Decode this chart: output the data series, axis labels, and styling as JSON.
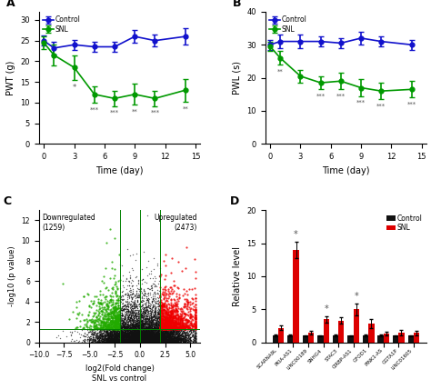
{
  "panel_A": {
    "title": "A",
    "xlabel": "Time (day)",
    "ylabel": "PWT (g)",
    "x": [
      0,
      1,
      3,
      5,
      7,
      9,
      11,
      14
    ],
    "control_mean": [
      25.0,
      23.2,
      24.0,
      23.5,
      23.5,
      26.0,
      25.0,
      26.0
    ],
    "control_err": [
      1.2,
      1.5,
      1.2,
      1.2,
      1.2,
      1.5,
      1.5,
      2.0
    ],
    "snl_mean": [
      24.5,
      21.5,
      18.5,
      12.0,
      11.0,
      12.0,
      11.0,
      13.0
    ],
    "snl_err": [
      1.5,
      2.5,
      3.0,
      2.0,
      1.8,
      2.5,
      1.8,
      2.8
    ],
    "sig_x": [
      3,
      5,
      7,
      9,
      11,
      14
    ],
    "sig_labels": [
      "*",
      "***",
      "***",
      "**",
      "***",
      "**"
    ],
    "ylim": [
      0,
      32
    ],
    "yticks": [
      0,
      5,
      10,
      15,
      20,
      25,
      30
    ],
    "xticks": [
      0,
      3,
      6,
      9,
      12,
      15
    ]
  },
  "panel_B": {
    "title": "B",
    "xlabel": "Time (day)",
    "ylabel": "PWL (s)",
    "x": [
      0,
      1,
      3,
      5,
      7,
      9,
      11,
      14
    ],
    "control_mean": [
      30.0,
      31.0,
      31.0,
      31.0,
      30.5,
      32.0,
      31.0,
      30.0
    ],
    "control_err": [
      1.5,
      2.0,
      2.0,
      1.5,
      1.5,
      2.0,
      1.5,
      1.5
    ],
    "snl_mean": [
      29.5,
      26.0,
      20.5,
      18.5,
      19.0,
      17.0,
      16.0,
      16.5
    ],
    "snl_err": [
      1.5,
      2.0,
      2.0,
      2.0,
      2.5,
      2.5,
      2.5,
      2.5
    ],
    "sig_x": [
      1,
      5,
      7,
      9,
      11,
      14
    ],
    "sig_labels": [
      "**",
      "***",
      "***",
      "***",
      "***",
      "***"
    ],
    "ylim": [
      0,
      40
    ],
    "yticks": [
      0,
      10,
      20,
      30,
      40
    ],
    "xticks": [
      0,
      3,
      6,
      9,
      12,
      15
    ]
  },
  "panel_C": {
    "title": "C",
    "xlabel": "log2(Fold change)\nSNL vs control",
    "ylabel": "-log10 (p value)",
    "downreg_label": "Downregulated\n(1259)",
    "upreg_label": "Upregulated\n(2473)",
    "xlim": [
      -10,
      6
    ],
    "ylim": [
      0,
      13
    ],
    "vlines": [
      -2,
      0,
      2
    ],
    "hline": 1.3,
    "color_up": "#ee0000",
    "color_down": "#22aa00",
    "color_ns": "#111111"
  },
  "panel_D": {
    "title": "D",
    "ylabel": "Relative level",
    "categories": [
      "SCARNA9L",
      "PKIA-AS1",
      "LINC00189",
      "SNHG4",
      "STAC3",
      "CIRBP-AS1",
      "GFOD1",
      "PINK1-AS",
      "GGTA1P",
      "LINC01605"
    ],
    "control_mean": [
      1.0,
      1.0,
      1.0,
      1.0,
      1.0,
      1.0,
      1.0,
      1.0,
      1.0,
      1.0
    ],
    "control_err": [
      0.12,
      0.12,
      0.1,
      0.1,
      0.12,
      0.1,
      0.12,
      0.12,
      0.1,
      0.1
    ],
    "snl_mean": [
      2.2,
      14.0,
      1.5,
      3.5,
      3.3,
      5.0,
      2.8,
      1.3,
      1.5,
      1.4
    ],
    "snl_err": [
      0.3,
      1.2,
      0.25,
      0.5,
      0.5,
      0.9,
      0.7,
      0.3,
      0.4,
      0.3
    ],
    "sig_indices": [
      1,
      3,
      5
    ],
    "ylim": [
      0,
      20
    ],
    "yticks": [
      0,
      5,
      10,
      15,
      20
    ]
  },
  "control_color": "#1111cc",
  "snl_color": "#009900",
  "sig_color": "#555555",
  "bar_control_color": "#111111",
  "bar_snl_color": "#dd0000",
  "bg_color": "#ffffff"
}
